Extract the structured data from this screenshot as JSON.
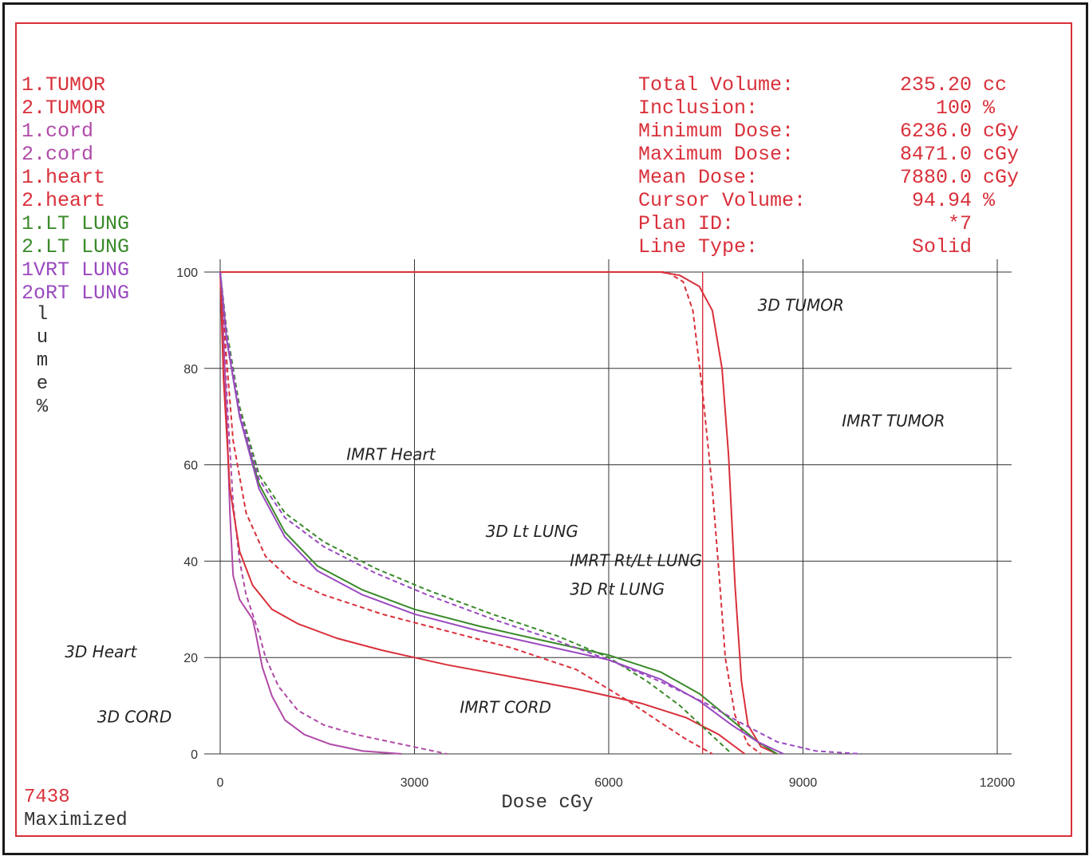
{
  "legend": [
    {
      "label": "1.TUMOR",
      "color": "#d9303a"
    },
    {
      "label": "2.TUMOR",
      "color": "#d9303a"
    },
    {
      "label": "1.cord",
      "color": "#b04aa8"
    },
    {
      "label": "2.cord",
      "color": "#b04aa8"
    },
    {
      "label": "1.heart",
      "color": "#d9303a"
    },
    {
      "label": "2.heart",
      "color": "#d9303a"
    },
    {
      "label": "1.LT LUNG",
      "color": "#3a8a2a"
    },
    {
      "label": "2.LT LUNG",
      "color": "#3a8a2a"
    },
    {
      "label": "1VRT LUNG",
      "color": "#9a4ac0"
    },
    {
      "label": "2oRT LUNG",
      "color": "#9a4ac0"
    }
  ],
  "ylabel_text": "lume %",
  "info": [
    {
      "label": "Total Volume:",
      "value": "235.20",
      "unit": "cc"
    },
    {
      "label": "Inclusion:",
      "value": "100",
      "unit": "%"
    },
    {
      "label": "Minimum Dose:",
      "value": "6236.0",
      "unit": "cGy"
    },
    {
      "label": "Maximum Dose:",
      "value": "8471.0",
      "unit": "cGy"
    },
    {
      "label": "Mean Dose:",
      "value": "7880.0",
      "unit": "cGy"
    },
    {
      "label": "Cursor Volume:",
      "value": "94.94",
      "unit": "%"
    },
    {
      "label": "Plan ID:",
      "value": "*7",
      "unit": ""
    },
    {
      "label": "Line Type:",
      "value": "Solid",
      "unit": ""
    }
  ],
  "footer": {
    "id": "7438",
    "status": "Maximized"
  },
  "chart_data": {
    "type": "line",
    "xlabel": "Dose cGy",
    "ylabel": "lume %",
    "xlim": [
      0,
      12000
    ],
    "ylim": [
      0,
      100
    ],
    "xticks": [
      0,
      3000,
      6000,
      9000,
      12000
    ],
    "yticks": [
      0,
      20,
      40,
      60,
      80,
      100
    ],
    "grid": true,
    "cursor_dose": 7450,
    "series": [
      {
        "name": "1.TUMOR",
        "color": "#d9303a",
        "dash": false,
        "x": [
          0,
          6800,
          7100,
          7400,
          7600,
          7750,
          7850,
          7950,
          8050,
          8150,
          8350,
          8600
        ],
        "y": [
          100,
          100,
          99.3,
          97,
          92,
          80,
          62,
          35,
          15,
          6,
          1.5,
          0
        ]
      },
      {
        "name": "2.TUMOR",
        "color": "#d9303a",
        "dash": true,
        "x": [
          0,
          6900,
          7150,
          7300,
          7450,
          7600,
          7700,
          7800,
          7950,
          8150,
          8350
        ],
        "y": [
          100,
          100,
          98,
          92,
          75,
          55,
          38,
          20,
          8,
          2,
          0
        ]
      },
      {
        "name": "1.cord",
        "color": "#b04aa8",
        "dash": false,
        "x": [
          0,
          40,
          100,
          150,
          200,
          300,
          400,
          500,
          550,
          650,
          800,
          1000,
          1300,
          1700,
          2200,
          2800
        ],
        "y": [
          100,
          90,
          70,
          50,
          37,
          32,
          30,
          28,
          25,
          18,
          12,
          7,
          4,
          2,
          0.6,
          0
        ]
      },
      {
        "name": "2.cord",
        "color": "#b04aa8",
        "dash": true,
        "x": [
          0,
          50,
          120,
          200,
          300,
          400,
          500,
          600,
          700,
          900,
          1200,
          1600,
          2100,
          2800,
          3500
        ],
        "y": [
          100,
          88,
          70,
          52,
          40,
          33,
          29,
          25,
          20,
          14,
          9,
          6,
          4,
          2,
          0
        ]
      },
      {
        "name": "1.heart",
        "color": "#d9303a",
        "dash": false,
        "x": [
          0,
          50,
          150,
          300,
          500,
          800,
          1200,
          1800,
          2500,
          3500,
          4500,
          5500,
          6500,
          7200,
          7700,
          8100
        ],
        "y": [
          100,
          78,
          55,
          42,
          35,
          30,
          27,
          24,
          21.5,
          18.5,
          16,
          13.5,
          10.5,
          7.5,
          4,
          0
        ]
      },
      {
        "name": "2.heart",
        "color": "#d9303a",
        "dash": true,
        "x": [
          0,
          80,
          200,
          400,
          700,
          1100,
          1600,
          2500,
          3500,
          4500,
          5500,
          6300,
          6800,
          7200,
          7600
        ],
        "y": [
          100,
          85,
          65,
          50,
          41,
          36,
          33,
          29,
          25.5,
          22,
          17.5,
          11,
          6.5,
          3,
          0
        ]
      },
      {
        "name": "1.LT LUNG",
        "color": "#3a8a2a",
        "dash": false,
        "x": [
          0,
          100,
          300,
          600,
          1000,
          1500,
          2200,
          3000,
          4000,
          5000,
          6000,
          6800,
          7400,
          7900,
          8300,
          8600
        ],
        "y": [
          100,
          86,
          70,
          56,
          46,
          39,
          34,
          30,
          26.5,
          23.5,
          20.5,
          17,
          12.5,
          7,
          2.5,
          0
        ]
      },
      {
        "name": "2.LT LUNG",
        "color": "#3a8a2a",
        "dash": true,
        "x": [
          0,
          100,
          300,
          600,
          1000,
          1600,
          2400,
          3200,
          4200,
          5200,
          6000,
          6600,
          7100,
          7500,
          7900
        ],
        "y": [
          100,
          88,
          72,
          58,
          50,
          44,
          38.5,
          34,
          29,
          24.5,
          20,
          15,
          10,
          5,
          0
        ]
      },
      {
        "name": "1VRT LUNG",
        "color": "#9a4ac0",
        "dash": false,
        "x": [
          0,
          100,
          300,
          600,
          1000,
          1500,
          2200,
          3000,
          4000,
          5000,
          6000,
          6800,
          7400,
          7900,
          8300,
          8700
        ],
        "y": [
          100,
          86,
          70,
          55,
          45,
          38,
          33,
          29,
          25.5,
          22.5,
          19.5,
          15.5,
          11,
          6,
          2.5,
          0
        ]
      },
      {
        "name": "2oRT LUNG",
        "color": "#9a4ac0",
        "dash": true,
        "x": [
          0,
          100,
          300,
          600,
          1000,
          1600,
          2400,
          3200,
          4200,
          5200,
          6000,
          6800,
          7500,
          8100,
          8600,
          9200,
          9900
        ],
        "y": [
          100,
          87,
          71,
          57,
          49,
          43,
          37.5,
          33,
          28,
          23.5,
          19.5,
          15,
          10.5,
          6,
          2.5,
          0.6,
          0
        ]
      }
    ],
    "annotations": [
      {
        "text": "3D TUMOR",
        "dose": 8300,
        "volume": 92
      },
      {
        "text": "IMRT TUMOR",
        "dose": 9600,
        "volume": 68
      },
      {
        "text": "IMRT Heart",
        "dose": 1950,
        "volume": 61
      },
      {
        "text": "3D Lt LUNG",
        "dose": 4100,
        "volume": 45
      },
      {
        "text": "IMRT Rt/Lt LUNG",
        "dose": 5400,
        "volume": 39
      },
      {
        "text": "3D Rt LUNG",
        "dose": 5400,
        "volume": 33
      },
      {
        "text": "3D Heart",
        "dose": -2400,
        "volume": 20
      },
      {
        "text": "IMRT CORD",
        "dose": 3700,
        "volume": 8.5
      },
      {
        "text": "3D CORD",
        "dose": -1900,
        "volume": 6.5
      }
    ]
  }
}
